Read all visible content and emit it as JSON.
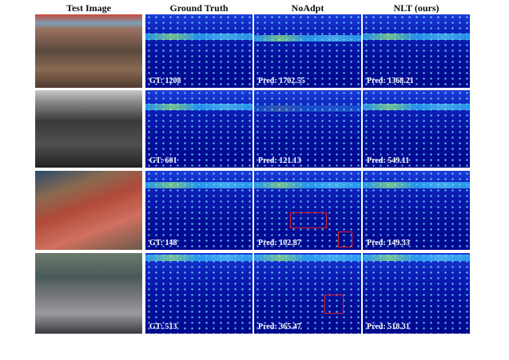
{
  "header": {
    "columns": [
      "Test Image",
      "Ground Truth",
      "NoAdpt",
      "NLT (ours)"
    ]
  },
  "rows": [
    {
      "labels": [
        "GT: 1208",
        "Pred: 1702.55",
        "Pred: 1368.21"
      ]
    },
    {
      "labels": [
        "GT: 601",
        "Pred: 121.13",
        "Pred: 549.11"
      ]
    },
    {
      "labels": [
        "GT: 148",
        "Pred: 102.87",
        "Pred: 149.33"
      ]
    },
    {
      "labels": [
        "GT: 513",
        "Pred: 365.47",
        "Pred: 518.31"
      ]
    }
  ]
}
